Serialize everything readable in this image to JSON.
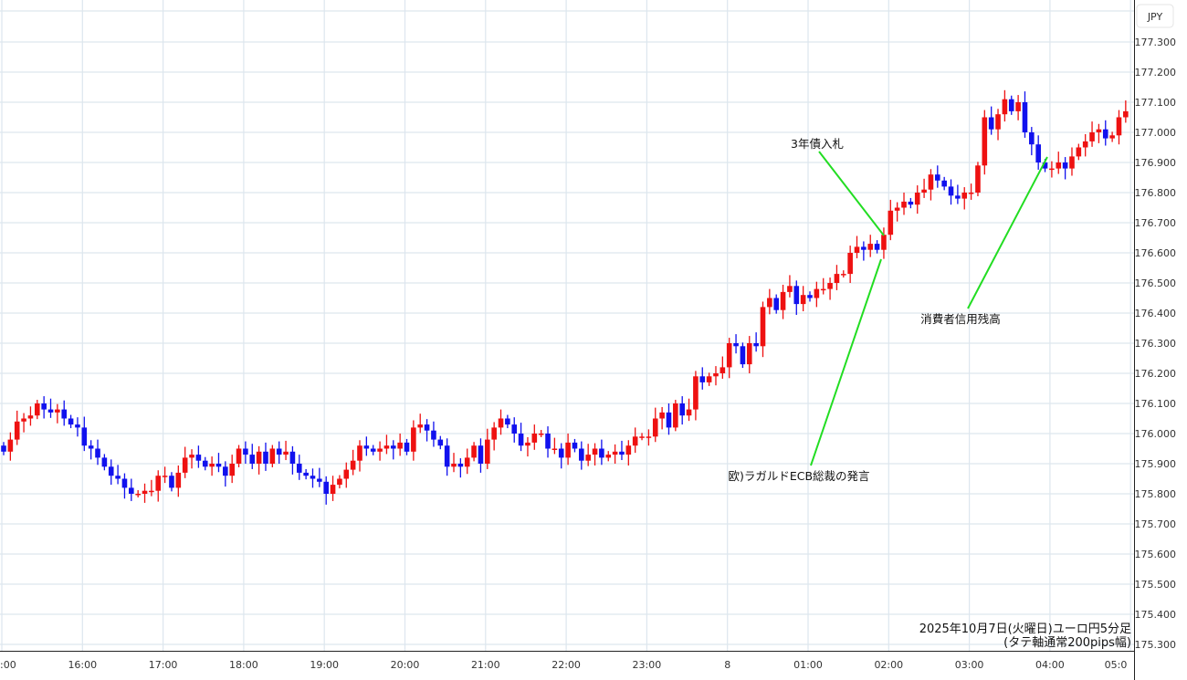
{
  "chart_data": {
    "type": "candlestick",
    "title": "2025年10月7日(火曜日)ユーロ円5分足",
    "subtitle": "(タテ軸通常200pips幅)",
    "currency_label": "JPY",
    "interval_minutes": 5,
    "ylim": [
      175.3,
      177.3
    ],
    "y_ticks": [
      "177.300",
      "177.200",
      "177.100",
      "177.000",
      "176.900",
      "176.800",
      "176.700",
      "176.600",
      "176.500",
      "176.400",
      "176.300",
      "176.200",
      "176.100",
      "176.000",
      "175.900",
      "175.800",
      "175.700",
      "175.600",
      "175.500",
      "175.400",
      "175.300"
    ],
    "x_ticks": [
      ":00",
      "16:00",
      "17:00",
      "18:00",
      "19:00",
      "20:00",
      "21:00",
      "22:00",
      "23:00",
      "8",
      "01:00",
      "02:00",
      "03:00",
      "04:00",
      "05:0"
    ],
    "colors": {
      "up": "#ee1111",
      "down": "#1111ee",
      "annotation_line": "#22dd22",
      "grid": "#dde6ee"
    },
    "first_open": 175.96,
    "close": [
      175.94,
      175.98,
      176.04,
      176.05,
      176.06,
      176.1,
      176.08,
      176.07,
      176.08,
      176.05,
      176.03,
      176.02,
      175.96,
      175.95,
      175.92,
      175.89,
      175.86,
      175.85,
      175.82,
      175.8,
      175.8,
      175.81,
      175.81,
      175.86,
      175.86,
      175.82,
      175.87,
      175.92,
      175.93,
      175.91,
      175.89,
      175.9,
      175.89,
      175.86,
      175.9,
      175.95,
      175.93,
      175.9,
      175.94,
      175.9,
      175.95,
      175.93,
      175.94,
      175.9,
      175.87,
      175.86,
      175.85,
      175.84,
      175.8,
      175.83,
      175.85,
      175.88,
      175.91,
      175.96,
      175.95,
      175.94,
      175.95,
      175.96,
      175.95,
      175.97,
      175.94,
      176.02,
      176.03,
      176.01,
      175.98,
      175.96,
      175.89,
      175.9,
      175.89,
      175.92,
      175.96,
      175.9,
      175.98,
      176.02,
      176.05,
      176.03,
      176.0,
      175.96,
      175.97,
      176.0,
      176.0,
      175.95,
      175.95,
      175.92,
      175.97,
      175.95,
      175.91,
      175.93,
      175.95,
      175.92,
      175.93,
      175.94,
      175.93,
      175.96,
      175.99,
      175.99,
      175.99,
      176.05,
      176.07,
      176.02,
      176.1,
      176.06,
      176.08,
      176.19,
      176.17,
      176.19,
      176.2,
      176.22,
      176.3,
      176.29,
      176.23,
      176.3,
      176.29,
      176.42,
      176.45,
      176.41,
      176.47,
      176.49,
      176.43,
      176.46,
      176.45,
      176.48,
      176.48,
      176.5,
      176.53,
      176.53,
      176.6,
      176.62,
      176.61,
      176.63,
      176.61,
      176.66,
      176.74,
      176.75,
      176.77,
      176.76,
      176.8,
      176.81,
      176.86,
      176.84,
      176.82,
      176.79,
      176.78,
      176.8,
      176.8,
      176.89,
      177.05,
      177.01,
      177.06,
      177.11,
      177.07,
      177.1,
      177.0,
      176.96,
      176.9,
      176.88,
      176.88,
      176.9,
      176.88,
      176.92,
      176.95,
      176.97,
      177.0,
      177.01,
      176.98,
      176.99,
      177.05,
      177.07
    ],
    "annotations": [
      {
        "text": "3年債入札"
      },
      {
        "text": "欧)ラガルドECB総裁の発言"
      },
      {
        "text": "消費者信用残高"
      }
    ]
  }
}
